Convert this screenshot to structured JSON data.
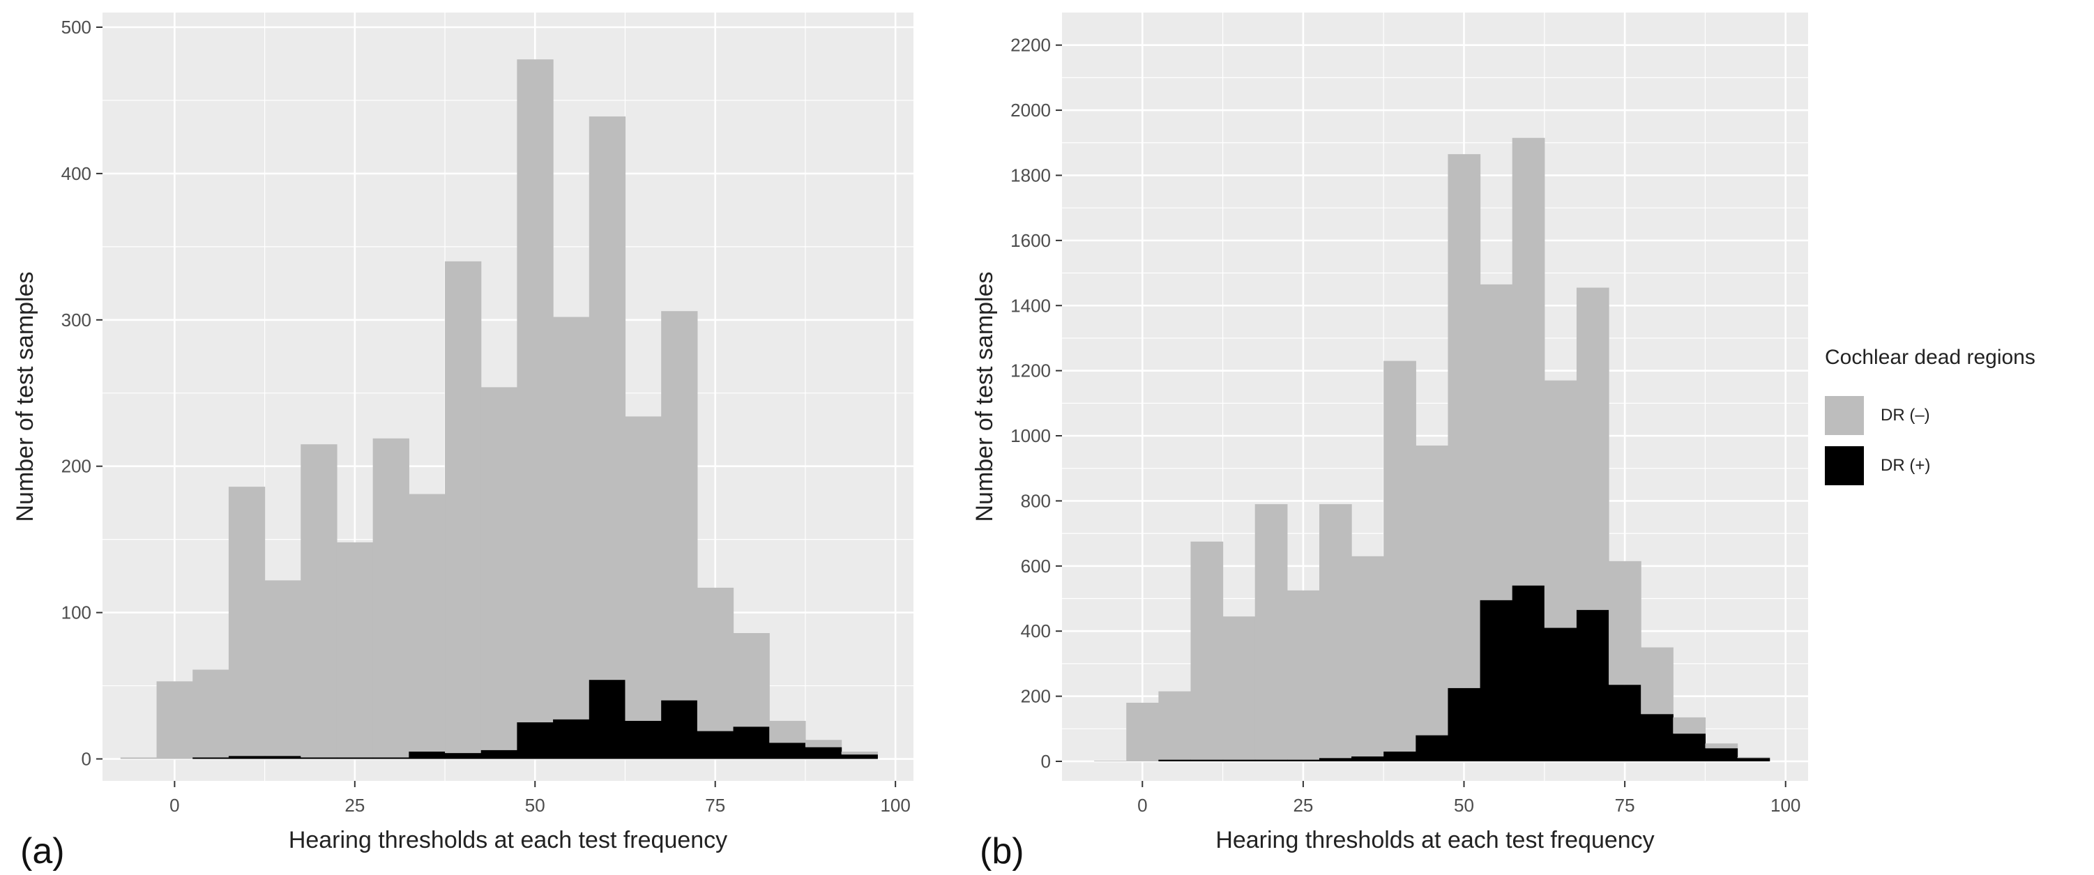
{
  "legend": {
    "title": "Cochlear dead regions",
    "entries": [
      {
        "label": "DR (–)",
        "color": "#bdbdbd"
      },
      {
        "label": "DR (+)",
        "color": "#000000"
      }
    ]
  },
  "colors": {
    "panel_background": "#ebebeb",
    "gridline": "#ffffff",
    "dr_negative": "#bdbdbd",
    "dr_positive": "#000000",
    "axis_text": "#4d4d4d",
    "axis_title": "#222222"
  },
  "chart_data": [
    {
      "type": "bar",
      "panel_label": "(a)",
      "title": "",
      "xlabel": "Hearing thresholds at each test frequency",
      "ylabel": "Number of test samples",
      "xlim": [
        -10,
        102.5
      ],
      "ylim": [
        -15,
        510
      ],
      "xticks": [
        0,
        25,
        50,
        75,
        100
      ],
      "yticks": [
        0,
        100,
        200,
        300,
        400,
        500
      ],
      "bin_width": 5,
      "bin_starts": [
        -7.5,
        -2.5,
        2.5,
        7.5,
        12.5,
        17.5,
        22.5,
        27.5,
        32.5,
        37.5,
        42.5,
        47.5,
        52.5,
        57.5,
        62.5,
        67.5,
        72.5,
        77.5,
        82.5,
        87.5,
        92.5
      ],
      "grid": true,
      "stacked": true,
      "series": [
        {
          "name": "DR (–)",
          "color": "#bdbdbd",
          "values": [
            1,
            53,
            60,
            184,
            120,
            214,
            147,
            218,
            176,
            336,
            248,
            453,
            275,
            385,
            208,
            266,
            98,
            64,
            15,
            5,
            2
          ]
        },
        {
          "name": "DR (+)",
          "color": "#000000",
          "values": [
            0,
            0,
            1,
            2,
            2,
            1,
            1,
            1,
            5,
            4,
            6,
            25,
            27,
            54,
            26,
            40,
            19,
            22,
            11,
            8,
            3
          ]
        }
      ]
    },
    {
      "type": "bar",
      "panel_label": "(b)",
      "title": "",
      "xlabel": "Hearing thresholds at each test frequency",
      "ylabel": "Number of test samples",
      "xlim": [
        -12.5,
        103.5
      ],
      "ylim": [
        -60,
        2300
      ],
      "xticks": [
        0,
        25,
        50,
        75,
        100
      ],
      "yticks": [
        0,
        200,
        400,
        600,
        800,
        1000,
        1200,
        1400,
        1600,
        1800,
        2000,
        2200
      ],
      "bin_width": 5,
      "bin_starts": [
        -7.5,
        -2.5,
        2.5,
        7.5,
        12.5,
        17.5,
        22.5,
        27.5,
        32.5,
        37.5,
        42.5,
        47.5,
        52.5,
        57.5,
        62.5,
        67.5,
        72.5,
        77.5,
        82.5,
        87.5,
        92.5
      ],
      "grid": true,
      "stacked": true,
      "series": [
        {
          "name": "DR (–)",
          "color": "#bdbdbd",
          "values": [
            2,
            180,
            210,
            670,
            440,
            785,
            520,
            780,
            615,
            1200,
            890,
            1640,
            970,
            1375,
            760,
            990,
            380,
            205,
            50,
            15,
            3
          ]
        },
        {
          "name": "DR (+)",
          "color": "#000000",
          "values": [
            0,
            0,
            5,
            5,
            5,
            5,
            5,
            10,
            15,
            30,
            80,
            225,
            495,
            540,
            410,
            465,
            235,
            145,
            85,
            40,
            10
          ]
        }
      ]
    }
  ]
}
